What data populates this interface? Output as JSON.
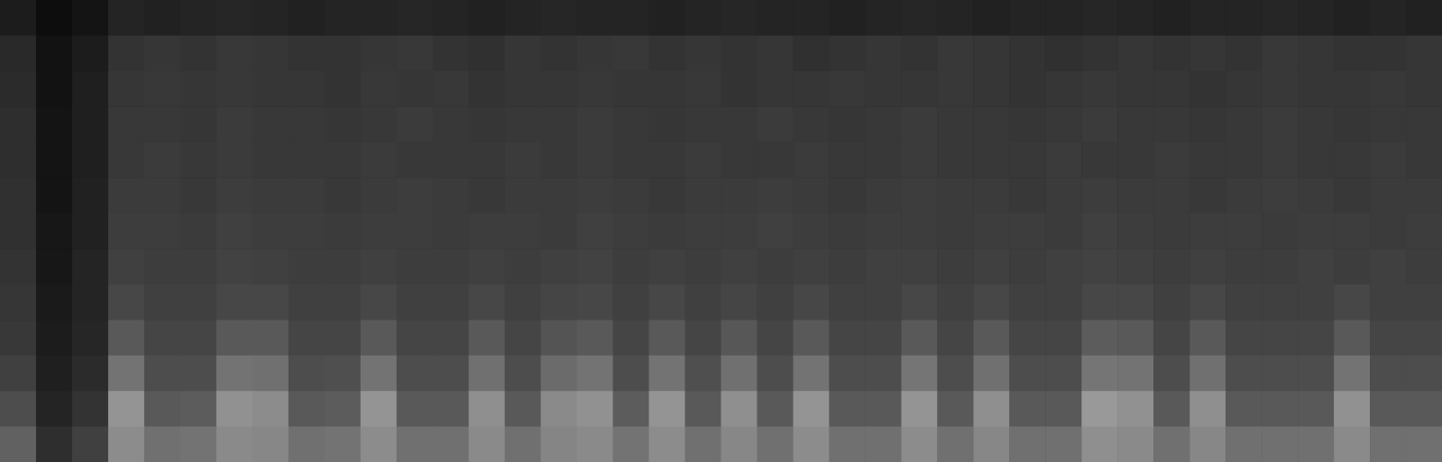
{
  "chart_data": {
    "type": "heatmap",
    "tick_labels": false,
    "zlim": [
      0,
      100
    ],
    "cells": [
      [
        11,
        5,
        8,
        14,
        13,
        14,
        15,
        14,
        13,
        14,
        14,
        15,
        14,
        13,
        14,
        15,
        14,
        14,
        13,
        14,
        15,
        14,
        14,
        13,
        14,
        15,
        14,
        13,
        14,
        14,
        15,
        14,
        13,
        14,
        14,
        15,
        14,
        13,
        14,
        13
      ],
      [
        16,
        7,
        11,
        20,
        21,
        20,
        22,
        21,
        20,
        20,
        21,
        22,
        20,
        19,
        21,
        20,
        21,
        22,
        20,
        21,
        20,
        21,
        19,
        20,
        21,
        20,
        22,
        21,
        20,
        19,
        20,
        21,
        20,
        21,
        20,
        22,
        21,
        20,
        20,
        21
      ],
      [
        17,
        7,
        12,
        21,
        22,
        21,
        22,
        21,
        21,
        20,
        22,
        21,
        22,
        20,
        21,
        21,
        22,
        21,
        21,
        22,
        20,
        21,
        21,
        22,
        21,
        21,
        22,
        21,
        20,
        21,
        22,
        21,
        21,
        20,
        21,
        22,
        21,
        21,
        22,
        21
      ],
      [
        18,
        8,
        12,
        22,
        22,
        21,
        23,
        22,
        22,
        21,
        22,
        23,
        22,
        21,
        22,
        22,
        23,
        22,
        21,
        22,
        22,
        23,
        22,
        21,
        22,
        23,
        22,
        22,
        21,
        22,
        23,
        22,
        22,
        21,
        22,
        23,
        22,
        21,
        22,
        22
      ],
      [
        18,
        8,
        12,
        22,
        23,
        22,
        23,
        22,
        22,
        22,
        23,
        22,
        22,
        22,
        23,
        22,
        23,
        22,
        22,
        23,
        22,
        22,
        23,
        22,
        22,
        23,
        22,
        22,
        22,
        23,
        22,
        22,
        23,
        22,
        22,
        23,
        22,
        22,
        23,
        22
      ],
      [
        19,
        8,
        13,
        23,
        23,
        22,
        24,
        23,
        23,
        22,
        23,
        24,
        23,
        22,
        23,
        23,
        24,
        23,
        22,
        23,
        23,
        24,
        23,
        22,
        23,
        24,
        23,
        23,
        22,
        23,
        24,
        23,
        23,
        22,
        23,
        24,
        23,
        22,
        23,
        23
      ],
      [
        19,
        9,
        13,
        24,
        24,
        23,
        25,
        24,
        24,
        23,
        24,
        24,
        23,
        24,
        24,
        23,
        25,
        24,
        23,
        24,
        24,
        25,
        24,
        23,
        24,
        24,
        23,
        24,
        24,
        23,
        25,
        24,
        23,
        24,
        24,
        23,
        24,
        24,
        23,
        24
      ],
      [
        20,
        9,
        14,
        25,
        24,
        24,
        26,
        25,
        24,
        24,
        25,
        24,
        24,
        25,
        24,
        25,
        26,
        24,
        25,
        24,
        25,
        24,
        25,
        24,
        25,
        25,
        24,
        25,
        24,
        25,
        26,
        25,
        24,
        25,
        24,
        24,
        25,
        24,
        25,
        24
      ],
      [
        21,
        10,
        14,
        28,
        25,
        25,
        28,
        28,
        25,
        25,
        28,
        25,
        25,
        28,
        25,
        27,
        28,
        25,
        28,
        25,
        27,
        25,
        28,
        25,
        25,
        28,
        25,
        28,
        25,
        25,
        28,
        28,
        25,
        28,
        25,
        25,
        25,
        28,
        25,
        25
      ],
      [
        22,
        11,
        15,
        35,
        27,
        27,
        35,
        35,
        27,
        27,
        35,
        27,
        27,
        35,
        27,
        33,
        35,
        27,
        35,
        27,
        34,
        27,
        35,
        27,
        27,
        35,
        27,
        35,
        27,
        27,
        36,
        35,
        27,
        35,
        27,
        27,
        27,
        35,
        27,
        27
      ],
      [
        25,
        12,
        17,
        45,
        30,
        30,
        45,
        44,
        30,
        31,
        45,
        30,
        30,
        44,
        30,
        42,
        45,
        30,
        45,
        31,
        44,
        30,
        45,
        30,
        30,
        46,
        30,
        44,
        30,
        30,
        46,
        45,
        30,
        44,
        30,
        30,
        30,
        45,
        30,
        30
      ],
      [
        30,
        14,
        20,
        58,
        35,
        36,
        57,
        55,
        35,
        36,
        58,
        35,
        35,
        56,
        35,
        54,
        57,
        36,
        58,
        35,
        56,
        35,
        58,
        35,
        35,
        58,
        35,
        56,
        35,
        35,
        60,
        57,
        35,
        56,
        35,
        35,
        35,
        57,
        35,
        35
      ],
      [
        38,
        18,
        25,
        55,
        44,
        45,
        54,
        53,
        44,
        45,
        55,
        44,
        44,
        54,
        44,
        52,
        54,
        45,
        55,
        44,
        53,
        44,
        55,
        44,
        44,
        55,
        44,
        53,
        44,
        44,
        56,
        54,
        44,
        53,
        44,
        44,
        44,
        54,
        44,
        44
      ]
    ]
  }
}
